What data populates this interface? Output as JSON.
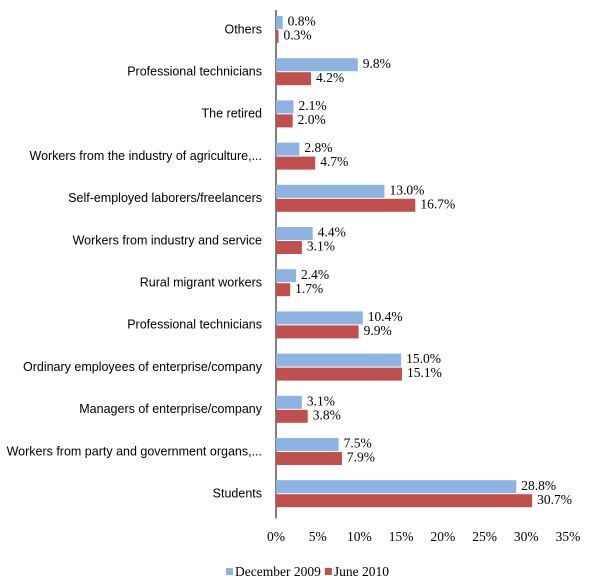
{
  "chart_data": {
    "type": "bar",
    "orientation": "horizontal",
    "categories": [
      "Others",
      "Professional technicians",
      "The retired",
      "Workers from the industry of agriculture,...",
      "Self-employed laborers/freelancers",
      "Workers from industry and service",
      "Rural migrant workers",
      "Professional technicians",
      "Ordinary employees of enterprise/company",
      "Managers of enterprise/company",
      "Workers from party and government organs,...",
      "Students"
    ],
    "series": [
      {
        "name": "December 2009",
        "color": "#8db3e2",
        "values": [
          0.8,
          9.8,
          2.1,
          2.8,
          13.0,
          4.4,
          2.4,
          10.4,
          15.0,
          3.1,
          7.5,
          28.8
        ],
        "value_labels": [
          "0.8%",
          "9.8%",
          "2.1%",
          "2.8%",
          "13.0%",
          "4.4%",
          "2.4%",
          "10.4%",
          "15.0%",
          "3.1%",
          "7.5%",
          "28.8%"
        ]
      },
      {
        "name": "June 2010",
        "color": "#c0504d",
        "values": [
          0.3,
          4.2,
          2.0,
          4.7,
          16.7,
          3.1,
          1.7,
          9.9,
          15.1,
          3.8,
          7.9,
          30.7
        ],
        "value_labels": [
          "0.3%",
          "4.2%",
          "2.0%",
          "4.7%",
          "16.7%",
          "3.1%",
          "1.7%",
          "9.9%",
          "15.1%",
          "3.8%",
          "7.9%",
          "30.7%"
        ]
      }
    ],
    "xlim": [
      0,
      35
    ],
    "xticks": [
      {
        "value": 0,
        "label": "0%"
      },
      {
        "value": 5,
        "label": "5%"
      },
      {
        "value": 10,
        "label": "10%"
      },
      {
        "value": 15,
        "label": "15%"
      },
      {
        "value": 20,
        "label": "20%"
      },
      {
        "value": 25,
        "label": "25%"
      },
      {
        "value": 30,
        "label": "30%"
      },
      {
        "value": 35,
        "label": "35%"
      }
    ],
    "legend": "bottom"
  }
}
